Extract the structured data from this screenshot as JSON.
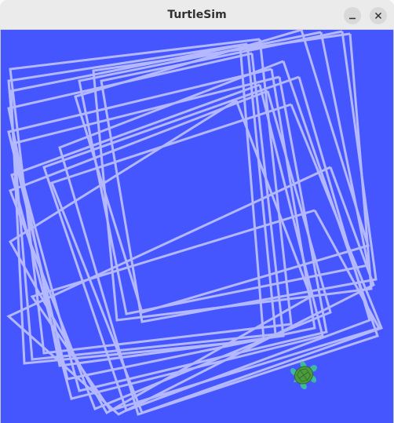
{
  "window": {
    "title": "TurtleSim",
    "minimize_icon": "minimize-icon",
    "close_icon": "close-icon"
  },
  "sim": {
    "background_color": "#4556ff",
    "pen_color": "#b3b8ff",
    "turtle_icon": "turtle-icon",
    "turtle_shell_color": "#4c9a3c",
    "turtle_body_color": "#3cb9a0"
  }
}
